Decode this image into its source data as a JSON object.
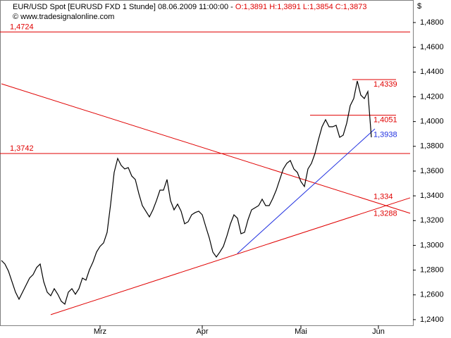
{
  "chart_data": {
    "type": "line",
    "title": "EUR/USD Spot [EURUSD FXD   1 Stunde] 08.06.2009 11:00:00 - ",
    "ohlc": "O:1,3891 H:1,3891 L:1,3854 C:1,3873",
    "copyright": "© www.tradesignalonline.com",
    "y_axis_label": "$",
    "categories": [
      null,
      null,
      null,
      null,
      null,
      null,
      null,
      null,
      null,
      null,
      null,
      null,
      null,
      null,
      null,
      null,
      null,
      null,
      null,
      null,
      null,
      null,
      null,
      null,
      null,
      null,
      null,
      null,
      "Mrz",
      null,
      null,
      null,
      null,
      null,
      null,
      null,
      null,
      null,
      null,
      null,
      null,
      null,
      null,
      null,
      null,
      null,
      null,
      null,
      null,
      null,
      null,
      null,
      null,
      null,
      null,
      null,
      null,
      "Apr",
      null,
      null,
      null,
      null,
      null,
      null,
      null,
      null,
      null,
      null,
      null,
      null,
      null,
      null,
      null,
      null,
      null,
      null,
      null,
      null,
      null,
      null,
      null,
      null,
      null,
      null,
      null,
      "Mai",
      null,
      null,
      null,
      null,
      null,
      null,
      null,
      null,
      null,
      null,
      null,
      null,
      null,
      null,
      null,
      null,
      null,
      null,
      null,
      null,
      null,
      "Jun",
      null,
      null,
      null,
      null,
      null,
      null,
      null,
      null,
      null
    ],
    "series": [
      {
        "name": "EUR/USD",
        "color": "#000000",
        "values": [
          1.2878,
          1.2849,
          1.2792,
          1.2707,
          1.2622,
          1.2565,
          1.2622,
          1.2679,
          1.2736,
          1.2764,
          1.2821,
          1.2849,
          1.2707,
          1.2622,
          1.2593,
          1.265,
          1.2605,
          1.2548,
          1.2525,
          1.2622,
          1.265,
          1.2605,
          1.265,
          1.2736,
          1.2719,
          1.2804,
          1.2866,
          1.2946,
          1.2992,
          1.302,
          1.3105,
          1.3333,
          1.3589,
          1.3702,
          1.3646,
          1.3617,
          1.3628,
          1.356,
          1.3532,
          1.3418,
          1.3321,
          1.3276,
          1.323,
          1.3287,
          1.3361,
          1.3446,
          1.3446,
          1.3532,
          1.3361,
          1.3287,
          1.3333,
          1.3276,
          1.3174,
          1.3191,
          1.3247,
          1.3265,
          1.3276,
          1.3247,
          1.3151,
          1.306,
          1.2946,
          1.2906,
          1.2946,
          1.2992,
          1.3077,
          1.3174,
          1.3247,
          1.3219,
          1.3094,
          1.3105,
          1.3208,
          1.3287,
          1.3304,
          1.3321,
          1.3373,
          1.3321,
          1.3321,
          1.3378,
          1.3446,
          1.3532,
          1.3617,
          1.3663,
          1.3685,
          1.3617,
          1.3589,
          1.3515,
          1.3475,
          1.3617,
          1.3663,
          1.3742,
          1.3856,
          1.3958,
          1.4015,
          1.3958,
          1.3958,
          1.397,
          1.3873,
          1.389,
          1.3987,
          1.4129,
          1.4186,
          1.4328,
          1.4214,
          1.4186,
          1.4243,
          1.3873,
          null,
          null,
          null,
          null,
          null,
          null,
          null,
          null,
          null,
          null,
          null
        ]
      }
    ],
    "ylim": [
      1.2354,
      1.4982
    ],
    "yticks": [
      {
        "value": 1.24,
        "label": "1,2400"
      },
      {
        "value": 1.26,
        "label": "1,2600"
      },
      {
        "value": 1.28,
        "label": "1,2800"
      },
      {
        "value": 1.3,
        "label": "1,3000"
      },
      {
        "value": 1.32,
        "label": "1,3200"
      },
      {
        "value": 1.34,
        "label": "1,3400"
      },
      {
        "value": 1.36,
        "label": "1,3600"
      },
      {
        "value": 1.38,
        "label": "1,3800"
      },
      {
        "value": 1.4,
        "label": "1,4000"
      },
      {
        "value": 1.42,
        "label": "1,4200"
      },
      {
        "value": 1.44,
        "label": "1,4400"
      },
      {
        "value": 1.46,
        "label": "1,4600"
      },
      {
        "value": 1.48,
        "label": "1,4800"
      }
    ],
    "levels": [
      {
        "value": 1.4724,
        "label": "1,4724",
        "x": [
          0,
          116
        ]
      },
      {
        "value": 1.3742,
        "label": "1,3742",
        "x": [
          0,
          116
        ]
      },
      {
        "value": 1.4339,
        "label": "1,4339",
        "x": [
          100,
          112
        ]
      },
      {
        "value": 1.4051,
        "label": "1,4051",
        "x": [
          88,
          112
        ]
      }
    ],
    "trendlines": [
      {
        "label": "1,334",
        "color": "#e00000",
        "x": [
          0,
          116
        ],
        "values": [
          1.4305,
          1.3259
        ]
      },
      {
        "label": "1,3288",
        "color": "#e00000",
        "x": [
          14,
          116
        ],
        "values": [
          1.244,
          1.3384
        ]
      },
      {
        "label": "1,3938",
        "color": "#2030e0",
        "x": [
          67,
          106
        ],
        "values": [
          1.2935,
          1.3941
        ]
      }
    ],
    "level_color": "#e00000",
    "grid": false
  }
}
